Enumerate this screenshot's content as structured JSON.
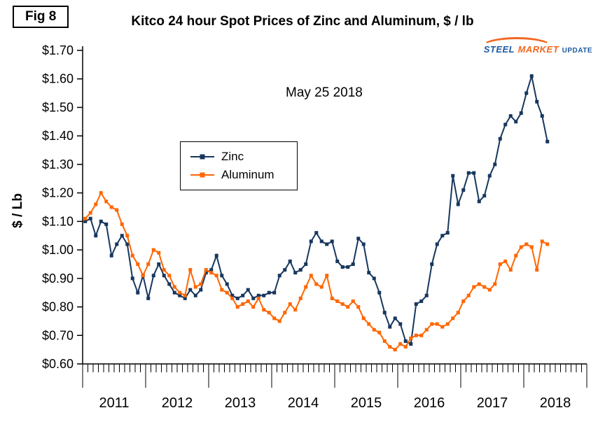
{
  "header": {
    "fig_label": "Fig 8",
    "title": "Kitco 24 hour Spot Prices of Zinc and Aluminum, $ / lb",
    "logo": {
      "steel": "STEEL",
      "market": "MARKET",
      "update": "UPDATE"
    }
  },
  "chart_data": {
    "type": "line",
    "title": "Kitco 24 hour Spot Prices of Zinc and Aluminum, $ / lb",
    "annotation": "May 25 2018",
    "ylabel": "$ / Lb",
    "ylim": [
      0.6,
      1.7
    ],
    "ytick_step": 0.1,
    "ytick_format": "$0.00",
    "x_years": [
      2011,
      2012,
      2013,
      2014,
      2015,
      2016,
      2017,
      2018
    ],
    "x_start": "2011-01",
    "x_end": "2018-05",
    "grid": false,
    "legend_position": "upper-left-inside",
    "series": [
      {
        "name": "Zinc",
        "color": "#17375E",
        "marker": "square",
        "values": [
          1.1,
          1.11,
          1.05,
          1.1,
          1.09,
          0.98,
          1.02,
          1.05,
          1.02,
          0.9,
          0.85,
          0.91,
          0.83,
          0.91,
          0.95,
          0.91,
          0.88,
          0.85,
          0.84,
          0.83,
          0.86,
          0.84,
          0.86,
          0.92,
          0.93,
          0.98,
          0.91,
          0.88,
          0.84,
          0.83,
          0.84,
          0.86,
          0.83,
          0.84,
          0.84,
          0.85,
          0.85,
          0.91,
          0.93,
          0.96,
          0.92,
          0.93,
          0.95,
          1.03,
          1.06,
          1.03,
          1.02,
          1.03,
          0.96,
          0.94,
          0.94,
          0.95,
          1.04,
          1.02,
          0.92,
          0.9,
          0.85,
          0.78,
          0.73,
          0.76,
          0.74,
          0.68,
          0.67,
          0.81,
          0.82,
          0.84,
          0.95,
          1.02,
          1.05,
          1.06,
          1.26,
          1.16,
          1.21,
          1.27,
          1.27,
          1.17,
          1.19,
          1.26,
          1.3,
          1.39,
          1.44,
          1.47,
          1.45,
          1.48,
          1.55,
          1.61,
          1.52,
          1.47,
          1.38
        ]
      },
      {
        "name": "Aluminum",
        "color": "#FF6600",
        "marker": "square",
        "values": [
          1.11,
          1.13,
          1.16,
          1.2,
          1.17,
          1.15,
          1.14,
          1.09,
          1.05,
          0.98,
          0.95,
          0.91,
          0.95,
          1.0,
          0.99,
          0.93,
          0.91,
          0.87,
          0.85,
          0.84,
          0.93,
          0.87,
          0.88,
          0.93,
          0.92,
          0.91,
          0.86,
          0.85,
          0.83,
          0.8,
          0.81,
          0.82,
          0.8,
          0.83,
          0.79,
          0.78,
          0.76,
          0.75,
          0.78,
          0.81,
          0.79,
          0.83,
          0.87,
          0.91,
          0.88,
          0.87,
          0.91,
          0.83,
          0.82,
          0.81,
          0.8,
          0.82,
          0.8,
          0.76,
          0.74,
          0.72,
          0.71,
          0.68,
          0.66,
          0.65,
          0.67,
          0.66,
          0.69,
          0.7,
          0.7,
          0.72,
          0.74,
          0.74,
          0.73,
          0.74,
          0.76,
          0.78,
          0.82,
          0.84,
          0.87,
          0.88,
          0.87,
          0.86,
          0.88,
          0.95,
          0.96,
          0.93,
          0.98,
          1.01,
          1.02,
          1.01,
          0.93,
          1.03,
          1.02
        ]
      }
    ]
  }
}
